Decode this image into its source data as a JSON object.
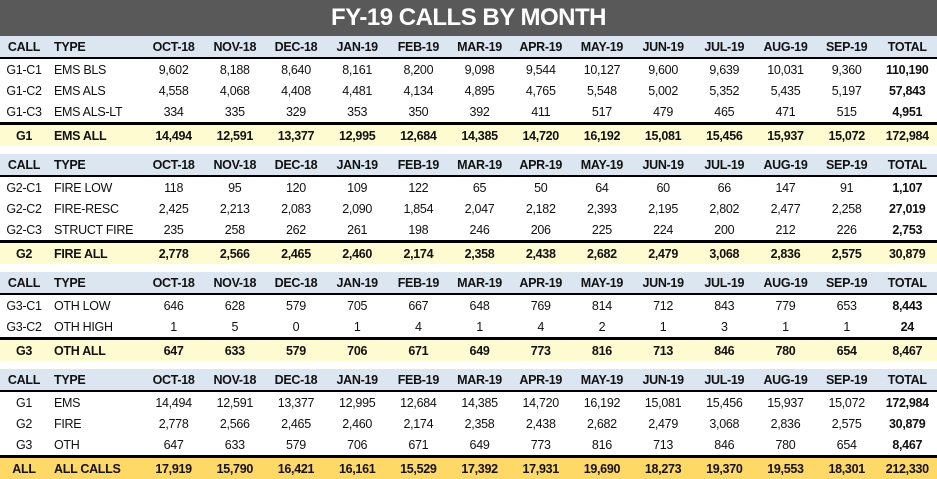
{
  "title": "FY-19 CALLS BY MONTH",
  "headers": [
    "CALL",
    "TYPE",
    "OCT-18",
    "NOV-18",
    "DEC-18",
    "JAN-19",
    "FEB-19",
    "MAR-19",
    "APR-19",
    "MAY-19",
    "JUN-19",
    "JUL-19",
    "AUG-19",
    "SEP-19",
    "TOTAL"
  ],
  "colors": {
    "title_bg": "#595959",
    "header_bg": "#dce6f1",
    "subtotal_bg": "#fffbd0",
    "grand_total_bg": "#ffd966"
  },
  "sections": [
    {
      "rows": [
        [
          "G1-C1",
          "EMS BLS",
          "9,602",
          "8,188",
          "8,640",
          "8,161",
          "8,200",
          "9,098",
          "9,544",
          "10,127",
          "9,600",
          "9,639",
          "10,031",
          "9,360",
          "110,190"
        ],
        [
          "G1-C2",
          "EMS ALS",
          "4,558",
          "4,068",
          "4,408",
          "4,481",
          "4,134",
          "4,895",
          "4,765",
          "5,548",
          "5,002",
          "5,352",
          "5,435",
          "5,197",
          "57,843"
        ],
        [
          "G1-C3",
          "EMS ALS-LT",
          "334",
          "335",
          "329",
          "353",
          "350",
          "392",
          "411",
          "517",
          "479",
          "465",
          "471",
          "515",
          "4,951"
        ]
      ],
      "summary": [
        "G1",
        "EMS ALL",
        "14,494",
        "12,591",
        "13,377",
        "12,995",
        "12,684",
        "14,385",
        "14,720",
        "16,192",
        "15,081",
        "15,456",
        "15,937",
        "15,072",
        "172,984"
      ]
    },
    {
      "rows": [
        [
          "G2-C1",
          "FIRE LOW",
          "118",
          "95",
          "120",
          "109",
          "122",
          "65",
          "50",
          "64",
          "60",
          "66",
          "147",
          "91",
          "1,107"
        ],
        [
          "G2-C2",
          "FIRE-RESC",
          "2,425",
          "2,213",
          "2,083",
          "2,090",
          "1,854",
          "2,047",
          "2,182",
          "2,393",
          "2,195",
          "2,802",
          "2,477",
          "2,258",
          "27,019"
        ],
        [
          "G2-C3",
          "STRUCT FIRE",
          "235",
          "258",
          "262",
          "261",
          "198",
          "246",
          "206",
          "225",
          "224",
          "200",
          "212",
          "226",
          "2,753"
        ]
      ],
      "summary": [
        "G2",
        "FIRE ALL",
        "2,778",
        "2,566",
        "2,465",
        "2,460",
        "2,174",
        "2,358",
        "2,438",
        "2,682",
        "2,479",
        "3,068",
        "2,836",
        "2,575",
        "30,879"
      ]
    },
    {
      "rows": [
        [
          "G3-C1",
          "OTH LOW",
          "646",
          "628",
          "579",
          "705",
          "667",
          "648",
          "769",
          "814",
          "712",
          "843",
          "779",
          "653",
          "8,443"
        ],
        [
          "G3-C2",
          "OTH HIGH",
          "1",
          "5",
          "0",
          "1",
          "4",
          "1",
          "4",
          "2",
          "1",
          "3",
          "1",
          "1",
          "24"
        ]
      ],
      "summary": [
        "G3",
        "OTH ALL",
        "647",
        "633",
        "579",
        "706",
        "671",
        "649",
        "773",
        "816",
        "713",
        "846",
        "780",
        "654",
        "8,467"
      ]
    },
    {
      "rows": [
        [
          "G1",
          "EMS",
          "14,494",
          "12,591",
          "13,377",
          "12,995",
          "12,684",
          "14,385",
          "14,720",
          "16,192",
          "15,081",
          "15,456",
          "15,937",
          "15,072",
          "172,984"
        ],
        [
          "G2",
          "FIRE",
          "2,778",
          "2,566",
          "2,465",
          "2,460",
          "2,174",
          "2,358",
          "2,438",
          "2,682",
          "2,479",
          "3,068",
          "2,836",
          "2,575",
          "30,879"
        ],
        [
          "G3",
          "OTH",
          "647",
          "633",
          "579",
          "706",
          "671",
          "649",
          "773",
          "816",
          "713",
          "846",
          "780",
          "654",
          "8,467"
        ]
      ],
      "summary": [
        "ALL",
        "ALL CALLS",
        "17,919",
        "15,790",
        "16,421",
        "16,161",
        "15,529",
        "17,392",
        "17,931",
        "19,690",
        "18,273",
        "19,370",
        "19,553",
        "18,301",
        "212,330"
      ],
      "grand": true
    }
  ]
}
